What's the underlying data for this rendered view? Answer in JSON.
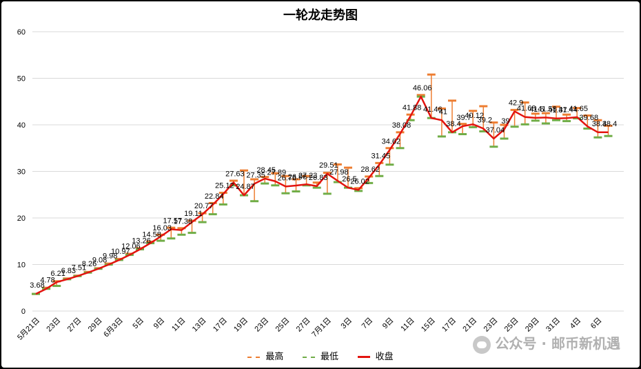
{
  "chart_data": {
    "type": "line",
    "title": "一轮龙走势图",
    "ylim": [
      0,
      60
    ],
    "yticks": [
      0,
      10,
      20,
      30,
      40,
      50,
      60
    ],
    "grid": true,
    "legend_position": "bottom",
    "categories": [
      "5月21日",
      "22日",
      "23日",
      "26日",
      "27日",
      "28日",
      "29日",
      "30日",
      "6月3日",
      "4日",
      "5日",
      "6日",
      "9日",
      "10日",
      "11日",
      "12日",
      "13日",
      "16日",
      "17日",
      "18日",
      "19日",
      "20日",
      "23日",
      "24日",
      "25日",
      "26日",
      "27日",
      "30日",
      "7月1日",
      "2日",
      "3日",
      "4日",
      "7日",
      "8日",
      "9日",
      "10日",
      "11日",
      "14日",
      "15日",
      "16日",
      "17日",
      "18日",
      "21日",
      "22日",
      "23日",
      "24日",
      "25日",
      "28日",
      "29日",
      "30日",
      "31日",
      "8月1日",
      "4日",
      "5日",
      "6日",
      "7日"
    ],
    "tick_labels": [
      "5月21日",
      "",
      "23日",
      "",
      "27日",
      "",
      "29日",
      "",
      "6月3日",
      "",
      "5日",
      "",
      "9日",
      "",
      "11日",
      "",
      "13日",
      "",
      "17日",
      "",
      "19日",
      "",
      "23日",
      "",
      "25日",
      "",
      "27日",
      "",
      "7月1日",
      "",
      "3日",
      "",
      "7日",
      "",
      "9日",
      "",
      "11日",
      "",
      "15日",
      "",
      "17日",
      "",
      "21日",
      "",
      "23日",
      "",
      "25日",
      "",
      "29日",
      "",
      "31日",
      "",
      "4日",
      "",
      "6日",
      ""
    ],
    "series": [
      {
        "name": "最高",
        "color": "#ED7D31",
        "values": [
          3.68,
          5.0,
          6.4,
          7.0,
          7.6,
          8.4,
          9.2,
          10.2,
          11.2,
          12.3,
          13.5,
          14.9,
          16.4,
          17.9,
          17.8,
          19.4,
          21.0,
          23.2,
          25.4,
          28.0,
          30.2,
          28.3,
          28.8,
          29.6,
          29.0,
          28.3,
          29.0,
          27.6,
          29.7,
          31.5,
          30.8,
          26.4,
          28.9,
          31.8,
          35.0,
          38.4,
          42.2,
          46.4,
          50.8,
          43.5,
          45.2,
          40.2,
          43.0,
          44.0,
          40.5,
          40.0,
          43.2,
          44.8,
          42.4,
          42.5,
          43.9,
          42.2,
          43.6,
          42.0,
          41.0,
          39.8
        ]
      },
      {
        "name": "最低",
        "color": "#70AD47",
        "values": [
          3.68,
          4.78,
          5.4,
          6.83,
          7.51,
          8.26,
          9.08,
          9.98,
          10.97,
          12.06,
          13.26,
          14.58,
          15.1,
          15.6,
          16.4,
          16.8,
          19.1,
          20.8,
          22.9,
          27.0,
          24.87,
          23.6,
          27.4,
          27.0,
          25.3,
          25.7,
          27.0,
          26.5,
          25.2,
          27.7,
          26.5,
          25.8,
          27.5,
          29.0,
          31.45,
          35.0,
          41.0,
          46.06,
          41.46,
          37.5,
          38.4,
          38.0,
          39.5,
          38.6,
          35.3,
          37.04,
          39.6,
          40.1,
          40.9,
          40.3,
          41.0,
          40.8,
          41.4,
          39.2,
          37.3,
          37.6
        ]
      },
      {
        "name": "收盘",
        "color": "#E3140F",
        "values": [
          3.68,
          4.78,
          6.21,
          6.83,
          7.51,
          8.26,
          9.08,
          9.98,
          10.97,
          12.06,
          13.26,
          14.58,
          16.03,
          17.57,
          17.38,
          19.11,
          20.77,
          22.84,
          25.12,
          27.63,
          24.87,
          27.35,
          28.45,
          27.89,
          26.76,
          26.96,
          27.23,
          26.83,
          29.51,
          27.98,
          26.5,
          26.02,
          28.62,
          31.45,
          34.62,
          38.08,
          41.88,
          46.06,
          41.46,
          41.0,
          38.4,
          39.7,
          40.12,
          39.2,
          37.04,
          39.0,
          42.9,
          41.68,
          41.5,
          41.58,
          41.37,
          41.44,
          41.65,
          39.68,
          38.4,
          38.4
        ]
      }
    ],
    "data_labels": [
      "3.68",
      "4.78",
      "6.21",
      "6.83",
      "7.51",
      "8.26",
      "9.08",
      "9.98",
      "10.97",
      "12.06",
      "13.26",
      "14.58",
      "16.03",
      "17.57",
      "17.38",
      "19.11",
      "20.77",
      "22.84",
      "25.12",
      "27.63",
      "24.87",
      "27.35",
      "28.45",
      "27.89",
      "26.76",
      "26.96",
      "27.23",
      "26.83",
      "29.51",
      "27.98",
      "26.5",
      "26.02",
      "28.62",
      "31.45",
      "34.62",
      "38.08",
      "41.88",
      "46.06",
      "41.46",
      "41",
      "38.4",
      "39.7",
      "40.12",
      "39.2",
      "37.04",
      "39",
      "42.9",
      "41.68",
      "41.5",
      "41.58",
      "41.37",
      "41.44",
      "41.65",
      "39.68",
      "38.4",
      "38.4"
    ]
  },
  "watermark": {
    "text": "公众号 · 邮币新机遇"
  },
  "legend": {
    "items": [
      {
        "name": "最高",
        "color": "#ED7D31",
        "style": "dashed"
      },
      {
        "name": "最低",
        "color": "#70AD47",
        "style": "dashed"
      },
      {
        "name": "收盘",
        "color": "#E3140F",
        "style": "solid"
      }
    ]
  }
}
